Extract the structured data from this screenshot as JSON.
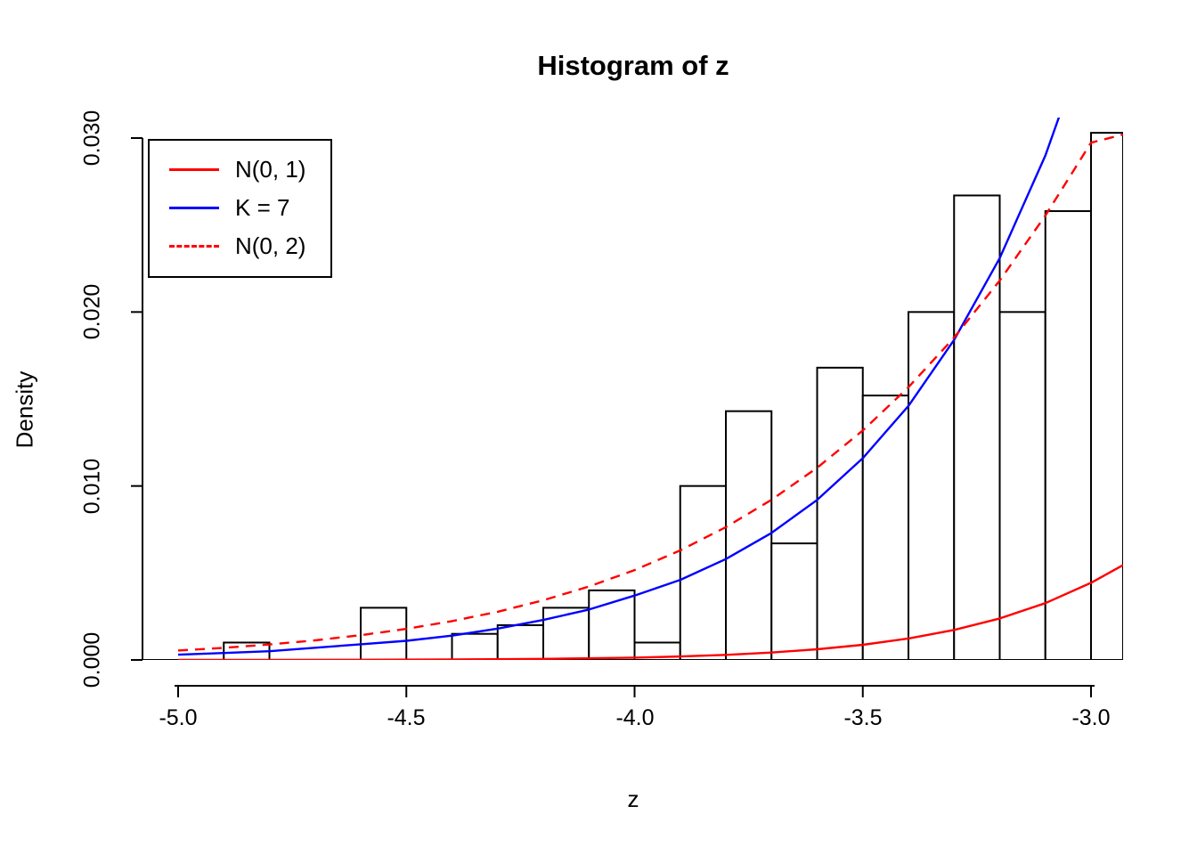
{
  "chart_data": {
    "type": "bar",
    "subtype": "histogram-with-density-curves",
    "title": "Histogram of z",
    "xlabel": "z",
    "ylabel": "Density",
    "xlim": [
      -5.078,
      -2.928
    ],
    "ylim": [
      0,
      0.0312
    ],
    "grid": false,
    "x_ticks": {
      "values": [
        -5.0,
        -4.5,
        -4.0,
        -3.5,
        -3.0
      ],
      "labels": [
        "-5.0",
        "-4.5",
        "-4.0",
        "-3.5",
        "-3.0"
      ]
    },
    "y_ticks": {
      "values": [
        0.0,
        0.01,
        0.02,
        0.03
      ],
      "labels": [
        "0.000",
        "0.010",
        "0.020",
        "0.030"
      ]
    },
    "bin_width": 0.1,
    "bars": [
      {
        "x0": -4.9,
        "x1": -4.8,
        "density": 0.001
      },
      {
        "x0": -4.6,
        "x1": -4.5,
        "density": 0.003
      },
      {
        "x0": -4.4,
        "x1": -4.3,
        "density": 0.0015
      },
      {
        "x0": -4.3,
        "x1": -4.2,
        "density": 0.002
      },
      {
        "x0": -4.2,
        "x1": -4.1,
        "density": 0.003
      },
      {
        "x0": -4.1,
        "x1": -4.0,
        "density": 0.004
      },
      {
        "x0": -4.0,
        "x1": -3.9,
        "density": 0.001
      },
      {
        "x0": -3.9,
        "x1": -3.8,
        "density": 0.01
      },
      {
        "x0": -3.8,
        "x1": -3.7,
        "density": 0.0143
      },
      {
        "x0": -3.7,
        "x1": -3.6,
        "density": 0.0067
      },
      {
        "x0": -3.6,
        "x1": -3.5,
        "density": 0.0168
      },
      {
        "x0": -3.5,
        "x1": -3.4,
        "density": 0.0152
      },
      {
        "x0": -3.4,
        "x1": -3.3,
        "density": 0.02
      },
      {
        "x0": -3.3,
        "x1": -3.2,
        "density": 0.0267
      },
      {
        "x0": -3.2,
        "x1": -3.1,
        "density": 0.02
      },
      {
        "x0": -3.1,
        "x1": -3.0,
        "density": 0.0258
      },
      {
        "x0": -3.0,
        "x1": -2.9,
        "density": 0.0303
      }
    ],
    "series": [
      {
        "name": "N(0, 1)",
        "color": "#ff0000",
        "style": "solid",
        "points": [
          [
            -5.0,
            1.5e-06
          ],
          [
            -4.8,
            4e-06
          ],
          [
            -4.6,
            1.01e-05
          ],
          [
            -4.4,
            2.49e-05
          ],
          [
            -4.2,
            5.89e-05
          ],
          [
            -4.0,
            0.0001338
          ],
          [
            -3.9,
            0.0001985
          ],
          [
            -3.8,
            0.0002915
          ],
          [
            -3.7,
            0.0004246
          ],
          [
            -3.6,
            0.0006119
          ],
          [
            -3.5,
            0.0008727
          ],
          [
            -3.4,
            0.001232
          ],
          [
            -3.3,
            0.001723
          ],
          [
            -3.2,
            0.002384
          ],
          [
            -3.1,
            0.003266
          ],
          [
            -3.0,
            0.004432
          ],
          [
            -2.93,
            0.005453
          ]
        ]
      },
      {
        "name": "K = 7",
        "color": "#0000ff",
        "style": "solid",
        "points": [
          [
            -5.0,
            0.0003
          ],
          [
            -4.9,
            0.0004
          ],
          [
            -4.8,
            0.0005
          ],
          [
            -4.7,
            0.0007
          ],
          [
            -4.6,
            0.0009
          ],
          [
            -4.5,
            0.0011
          ],
          [
            -4.4,
            0.0014
          ],
          [
            -4.3,
            0.0018
          ],
          [
            -4.2,
            0.0023
          ],
          [
            -4.1,
            0.0029
          ],
          [
            -4.0,
            0.0037
          ],
          [
            -3.9,
            0.0046
          ],
          [
            -3.8,
            0.0058
          ],
          [
            -3.7,
            0.0073
          ],
          [
            -3.6,
            0.0092
          ],
          [
            -3.5,
            0.0116
          ],
          [
            -3.4,
            0.0146
          ],
          [
            -3.3,
            0.0184
          ],
          [
            -3.2,
            0.0231
          ],
          [
            -3.1,
            0.029
          ],
          [
            -3.0,
            0.0364
          ]
        ]
      },
      {
        "name": "N(0, 2)",
        "color": "#ff0000",
        "style": "dashed",
        "points": [
          [
            -5.0,
            0.000545
          ],
          [
            -4.9,
            0.000697
          ],
          [
            -4.8,
            0.000889
          ],
          [
            -4.7,
            0.001127
          ],
          [
            -4.6,
            0.001422
          ],
          [
            -4.5,
            0.001786
          ],
          [
            -4.4,
            0.002231
          ],
          [
            -4.3,
            0.002772
          ],
          [
            -4.2,
            0.003429
          ],
          [
            -4.1,
            0.004221
          ],
          [
            -4.0,
            0.005167
          ],
          [
            -3.9,
            0.006297
          ],
          [
            -3.8,
            0.007631
          ],
          [
            -3.7,
            0.009204
          ],
          [
            -3.6,
            0.011048
          ],
          [
            -3.5,
            0.013194
          ],
          [
            -3.4,
            0.015678
          ],
          [
            -3.3,
            0.01853
          ],
          [
            -3.2,
            0.021807
          ],
          [
            -3.1,
            0.025544
          ],
          [
            -3.0,
            0.029732
          ],
          [
            -2.93,
            0.0302
          ]
        ]
      }
    ],
    "legend": {
      "position": "topleft",
      "entries": [
        "N(0, 1)",
        "K = 7",
        "N(0, 2)"
      ]
    }
  }
}
